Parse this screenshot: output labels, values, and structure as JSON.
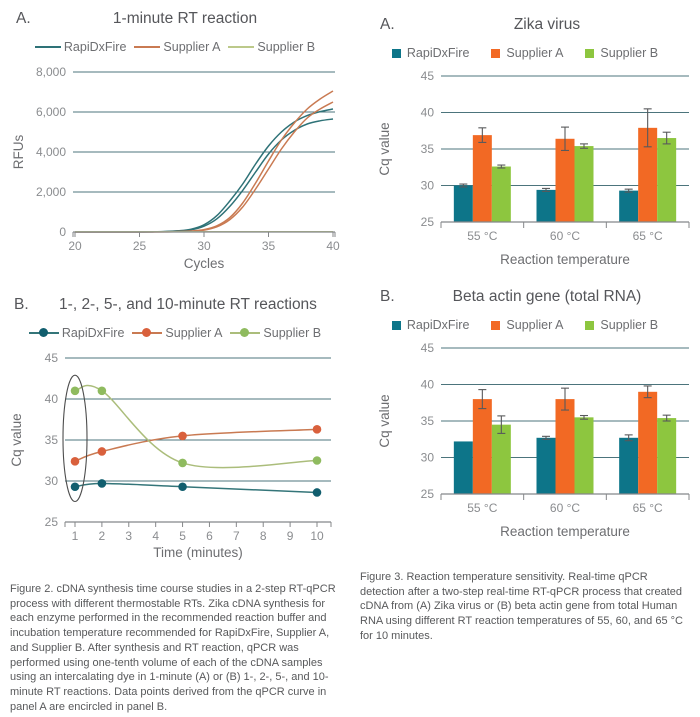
{
  "palette": {
    "teal": "#0d7589",
    "orange": "#f26924",
    "green": "#8dc63f",
    "grid": "#4c747c",
    "axis": "#85878a",
    "tick_text": "#8a8c8f",
    "title_text": "#55565a",
    "legend_text": "#6d6e71",
    "caption_text": "#58595b",
    "error_bar": "#58595b",
    "annotation": "#4d4d4d"
  },
  "figure2": {
    "panel_a": {
      "label": "A.",
      "title": "1-minute RT reaction"
    },
    "panel_b": {
      "label": "B.",
      "title": "1-, 2-, 5-, and 10-minute RT reactions"
    },
    "caption": "Figure 2. cDNA synthesis time course studies in a 2-step RT-qPCR process with different thermostable RTs. Zika cDNA synthesis for each enzyme performed in the recommended reaction buffer and incubation temperature recommended for RapiDxFire, Supplier A, and Supplier B. After synthesis and RT reaction, qPCR was performed using one-tenth volume of each of the cDNA samples using an intercalating dye in 1-minute (A) or (B) 1-, 2-, 5-, and 10-minute RT reactions. Data points derived from the qPCR curve in panel A are encircled in panel B."
  },
  "figure3": {
    "panel_a": {
      "label": "A.",
      "title": "Zika virus"
    },
    "panel_b": {
      "label": "B.",
      "title": "Beta actin gene (total RNA)"
    },
    "caption": "Figure 3. Reaction temperature sensitivity. Real-time qPCR detection after a two-step real-time RT-qPCR process that created cDNA from (A) Zika virus or (B) beta actin gene from total Human RNA using different RT reaction temperatures of 55, 60, and 65 °C for 10 minutes."
  },
  "chart_data": [
    {
      "id": "rt_curve",
      "type": "line",
      "panel": "A",
      "title": "1-minute RT reaction",
      "xlabel": "Cycles",
      "ylabel": "RFUs",
      "xlim": [
        20,
        40
      ],
      "ylim": [
        0,
        8000
      ],
      "xticks": [
        20,
        25,
        30,
        35,
        40
      ],
      "yticks": [
        0,
        2000,
        4000,
        6000,
        8000
      ],
      "ytick_labels": [
        "0",
        "2,000",
        "4,000",
        "6,000",
        "8,000"
      ],
      "grid": "horizontal",
      "legend": [
        {
          "label": "RapiDxFire",
          "swatch": "line",
          "color": "#2e7277"
        },
        {
          "label": "Supplier A",
          "swatch": "line",
          "color": "#c97a52"
        },
        {
          "label": "Supplier B",
          "swatch": "line",
          "color": "#bcc98a"
        }
      ],
      "series": [
        {
          "name": "RapiDxFire replicate 1",
          "color": "#2e7277",
          "markers": false,
          "x": [
            20,
            21,
            22,
            23,
            24,
            25,
            26,
            27,
            28,
            29,
            30,
            31,
            32,
            33,
            34,
            35,
            36,
            37,
            38,
            39,
            40
          ],
          "y": [
            5,
            5,
            5,
            5,
            5,
            8,
            12,
            25,
            60,
            140,
            360,
            820,
            1550,
            2400,
            3400,
            4300,
            5000,
            5500,
            5820,
            6020,
            6150
          ]
        },
        {
          "name": "RapiDxFire replicate 2",
          "color": "#2e7277",
          "markers": false,
          "x": [
            20,
            21,
            22,
            23,
            24,
            25,
            26,
            27,
            28,
            29,
            30,
            31,
            32,
            33,
            34,
            35,
            36,
            37,
            38,
            39,
            40
          ],
          "y": [
            5,
            5,
            5,
            5,
            5,
            6,
            9,
            18,
            45,
            110,
            290,
            660,
            1280,
            2080,
            3000,
            3900,
            4600,
            5080,
            5400,
            5560,
            5650
          ]
        },
        {
          "name": "Supplier A replicate 1",
          "color": "#c97a52",
          "markers": false,
          "x": [
            20,
            21,
            22,
            23,
            24,
            25,
            26,
            27,
            28,
            29,
            30,
            31,
            32,
            33,
            34,
            35,
            36,
            37,
            38,
            39,
            40
          ],
          "y": [
            5,
            5,
            5,
            5,
            5,
            5,
            6,
            10,
            22,
            50,
            120,
            310,
            720,
            1450,
            2450,
            3550,
            4600,
            5450,
            6150,
            6650,
            7050
          ]
        },
        {
          "name": "Supplier A replicate 2",
          "color": "#c97a52",
          "markers": false,
          "x": [
            20,
            21,
            22,
            23,
            24,
            25,
            26,
            27,
            28,
            29,
            30,
            31,
            32,
            33,
            34,
            35,
            36,
            37,
            38,
            39,
            40
          ],
          "y": [
            5,
            5,
            5,
            5,
            5,
            5,
            5,
            8,
            16,
            38,
            95,
            260,
            620,
            1250,
            2150,
            3150,
            4150,
            5000,
            5700,
            6150,
            6500
          ]
        },
        {
          "name": "Supplier B (no amplification)",
          "color": "#bcc98a",
          "markers": false,
          "x": [
            20,
            40
          ],
          "y": [
            15,
            15
          ]
        }
      ]
    },
    {
      "id": "zika",
      "type": "bar",
      "panel": "A",
      "title": "Zika virus",
      "xlabel": "Reaction temperature",
      "ylabel": "Cq value",
      "ylim": [
        25,
        45
      ],
      "yticks": [
        25,
        30,
        35,
        40,
        45
      ],
      "grid": "horizontal",
      "categories": [
        "55 °C",
        "60 °C",
        "65 °C"
      ],
      "legend": [
        {
          "label": "RapiDxFire",
          "swatch": "square",
          "color": "#0d7589"
        },
        {
          "label": "Supplier A",
          "swatch": "square",
          "color": "#f26924"
        },
        {
          "label": "Supplier B",
          "swatch": "square",
          "color": "#8dc63f"
        }
      ],
      "series": [
        {
          "name": "RapiDxFire",
          "color": "#0d7589",
          "values": [
            30.0,
            29.4,
            29.3
          ],
          "errors": [
            0.2,
            0.2,
            0.2
          ]
        },
        {
          "name": "Supplier A",
          "color": "#f26924",
          "values": [
            36.9,
            36.4,
            37.9
          ],
          "errors": [
            1.0,
            1.6,
            2.6
          ]
        },
        {
          "name": "Supplier B",
          "color": "#8dc63f",
          "values": [
            32.6,
            35.4,
            36.5
          ],
          "errors": [
            0.2,
            0.3,
            0.8
          ]
        }
      ]
    },
    {
      "id": "timecourse",
      "type": "line",
      "panel": "B",
      "title": "1-, 2-, 5-, and 10-minute RT reactions",
      "xlabel": "Time (minutes)",
      "ylabel": "Cq value",
      "xlim": [
        1,
        10
      ],
      "ylim": [
        25,
        45
      ],
      "xticks": [
        1,
        2,
        3,
        4,
        5,
        6,
        7,
        8,
        9,
        10
      ],
      "yticks": [
        25,
        30,
        35,
        40,
        45
      ],
      "grid": "horizontal",
      "legend": [
        {
          "label": "RapiDxFire",
          "swatch": "dot-line",
          "color": "#115e6e",
          "line": "#347579"
        },
        {
          "label": "Supplier A",
          "swatch": "dot-line",
          "color": "#d9603c",
          "line": "#c97a52"
        },
        {
          "label": "Supplier B",
          "swatch": "dot-line",
          "color": "#8fbb5f",
          "line": "#abbd7b"
        }
      ],
      "series": [
        {
          "name": "RapiDxFire",
          "color": "#115e6e",
          "line": "#347579",
          "markers": true,
          "x": [
            1,
            2,
            5,
            10
          ],
          "y": [
            29.3,
            29.7,
            29.3,
            28.6
          ]
        },
        {
          "name": "Supplier A",
          "color": "#d9603c",
          "line": "#c97a52",
          "markers": true,
          "x": [
            1,
            2,
            5,
            10
          ],
          "y": [
            32.4,
            33.6,
            35.5,
            36.3
          ]
        },
        {
          "name": "Supplier B",
          "color": "#8fbb5f",
          "line": "#abbd7b",
          "markers": true,
          "x": [
            1,
            2,
            5,
            10
          ],
          "y": [
            41.0,
            41.0,
            32.2,
            32.5
          ]
        }
      ],
      "annotation": {
        "shape": "ellipse",
        "x": 1,
        "y_center": 35.2,
        "y_span": 15.4,
        "color": "#4d4d4d",
        "note": "Data points derived from the qPCR curve in panel A are encircled"
      }
    },
    {
      "id": "beta_actin",
      "type": "bar",
      "panel": "B",
      "title": "Beta actin gene (total RNA)",
      "xlabel": "Reaction temperature",
      "ylabel": "Cq value",
      "ylim": [
        25,
        45
      ],
      "yticks": [
        25,
        30,
        35,
        40,
        45
      ],
      "grid": "horizontal",
      "categories": [
        "55 °C",
        "60 °C",
        "65 °C"
      ],
      "legend": [
        {
          "label": "RapiDxFire",
          "swatch": "square",
          "color": "#0d7589"
        },
        {
          "label": "Supplier A",
          "swatch": "square",
          "color": "#f26924"
        },
        {
          "label": "Supplier B",
          "swatch": "square",
          "color": "#8dc63f"
        }
      ],
      "series": [
        {
          "name": "RapiDxFire",
          "color": "#0d7589",
          "values": [
            32.2,
            32.7,
            32.7
          ],
          "errors": [
            0,
            0.2,
            0.4
          ]
        },
        {
          "name": "Supplier A",
          "color": "#f26924",
          "values": [
            38.0,
            38.0,
            39.0
          ],
          "errors": [
            1.3,
            1.5,
            0.8
          ]
        },
        {
          "name": "Supplier B",
          "color": "#8dc63f",
          "values": [
            34.5,
            35.5,
            35.4
          ],
          "errors": [
            1.2,
            0.25,
            0.4
          ]
        }
      ]
    }
  ]
}
